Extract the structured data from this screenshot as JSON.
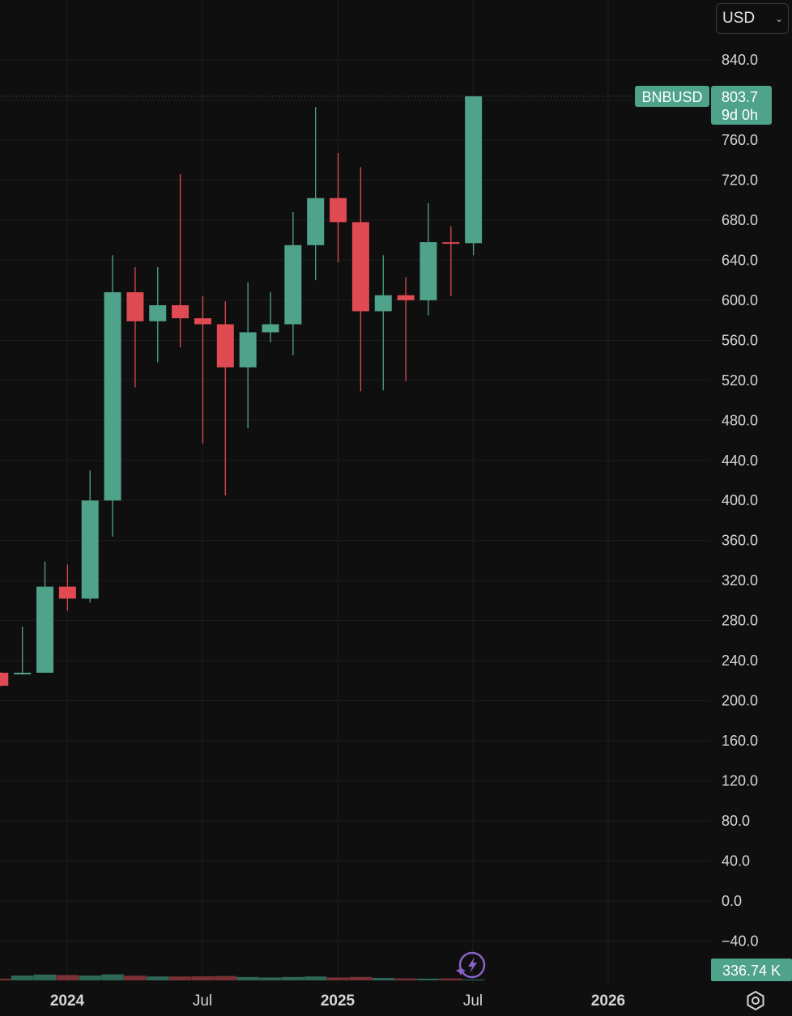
{
  "currency_selector": {
    "value": "USD",
    "icon": "chevron-down-icon"
  },
  "last_price": {
    "symbol": "BNBUSD",
    "price": "803.7",
    "countdown": "9d 0h"
  },
  "volume_label": "336.74 K",
  "settings_icon": "settings-hexagon-icon",
  "indicator_icon": "lightning-sparkle-icon",
  "colors": {
    "up": "#4fa38a",
    "down": "#e04a52",
    "background": "#0f0f0f",
    "grid": "#1e1e1e"
  },
  "chart_data": {
    "type": "candlestick",
    "symbol": "BNBUSD",
    "interval": "1M",
    "y_ticks": [
      "840.0",
      "800.0",
      "760.0",
      "720.0",
      "680.0",
      "640.0",
      "600.0",
      "560.0",
      "520.0",
      "480.0",
      "440.0",
      "400.0",
      "360.0",
      "320.0",
      "280.0",
      "240.0",
      "200.0",
      "160.0",
      "120.0",
      "80.0",
      "40.0",
      "0.0",
      "−40.0"
    ],
    "ylim": [
      -55,
      870
    ],
    "x_labels": [
      {
        "text": "2024",
        "year": true
      },
      {
        "text": "Jul",
        "year": false
      },
      {
        "text": "2025",
        "year": true
      },
      {
        "text": "Jul",
        "year": false
      },
      {
        "text": "2026",
        "year": true
      }
    ],
    "candles": [
      {
        "date": "2023-10",
        "open": 228,
        "high": 229,
        "low": 214,
        "close": 215
      },
      {
        "date": "2023-11",
        "open": 228,
        "high": 274,
        "low": 226,
        "close": 228
      },
      {
        "date": "2023-12",
        "open": 228,
        "high": 339,
        "low": 228,
        "close": 314
      },
      {
        "date": "2024-01",
        "open": 314,
        "high": 336,
        "low": 290,
        "close": 302
      },
      {
        "date": "2024-02",
        "open": 302,
        "high": 430,
        "low": 298,
        "close": 400
      },
      {
        "date": "2024-03",
        "open": 400,
        "high": 645,
        "low": 364,
        "close": 608
      },
      {
        "date": "2024-04",
        "open": 608,
        "high": 633,
        "low": 513,
        "close": 579
      },
      {
        "date": "2024-05",
        "open": 579,
        "high": 633,
        "low": 538,
        "close": 595
      },
      {
        "date": "2024-06",
        "open": 595,
        "high": 726,
        "low": 553,
        "close": 582
      },
      {
        "date": "2024-07",
        "open": 582,
        "high": 604,
        "low": 457,
        "close": 576
      },
      {
        "date": "2024-08",
        "open": 576,
        "high": 599,
        "low": 405,
        "close": 533
      },
      {
        "date": "2024-09",
        "open": 533,
        "high": 618,
        "low": 472,
        "close": 568
      },
      {
        "date": "2024-10",
        "open": 568,
        "high": 608,
        "low": 558,
        "close": 576
      },
      {
        "date": "2024-11",
        "open": 576,
        "high": 688,
        "low": 545,
        "close": 655
      },
      {
        "date": "2024-12",
        "open": 655,
        "high": 793,
        "low": 620,
        "close": 702
      },
      {
        "date": "2025-01",
        "open": 702,
        "high": 747,
        "low": 638,
        "close": 678
      },
      {
        "date": "2025-02",
        "open": 678,
        "high": 733,
        "low": 509,
        "close": 589
      },
      {
        "date": "2025-03",
        "open": 589,
        "high": 645,
        "low": 510,
        "close": 605
      },
      {
        "date": "2025-04",
        "open": 605,
        "high": 623,
        "low": 519,
        "close": 600
      },
      {
        "date": "2025-05",
        "open": 600,
        "high": 697,
        "low": 585,
        "close": 658
      },
      {
        "date": "2025-06",
        "open": 658,
        "high": 674,
        "low": 604,
        "close": 657
      },
      {
        "date": "2025-07",
        "open": 657,
        "high": 803.7,
        "low": 645,
        "close": 803.7
      }
    ],
    "volume": [
      0.18,
      0.5,
      0.6,
      0.55,
      0.5,
      0.62,
      0.48,
      0.4,
      0.4,
      0.42,
      0.45,
      0.35,
      0.3,
      0.35,
      0.4,
      0.3,
      0.35,
      0.25,
      0.2,
      0.18,
      0.2,
      0.1
    ]
  }
}
